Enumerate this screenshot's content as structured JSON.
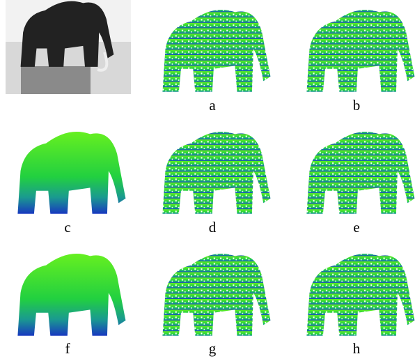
{
  "figure": {
    "labels": [
      "a",
      "b",
      "c",
      "d",
      "e",
      "f",
      "g",
      "h"
    ]
  }
}
